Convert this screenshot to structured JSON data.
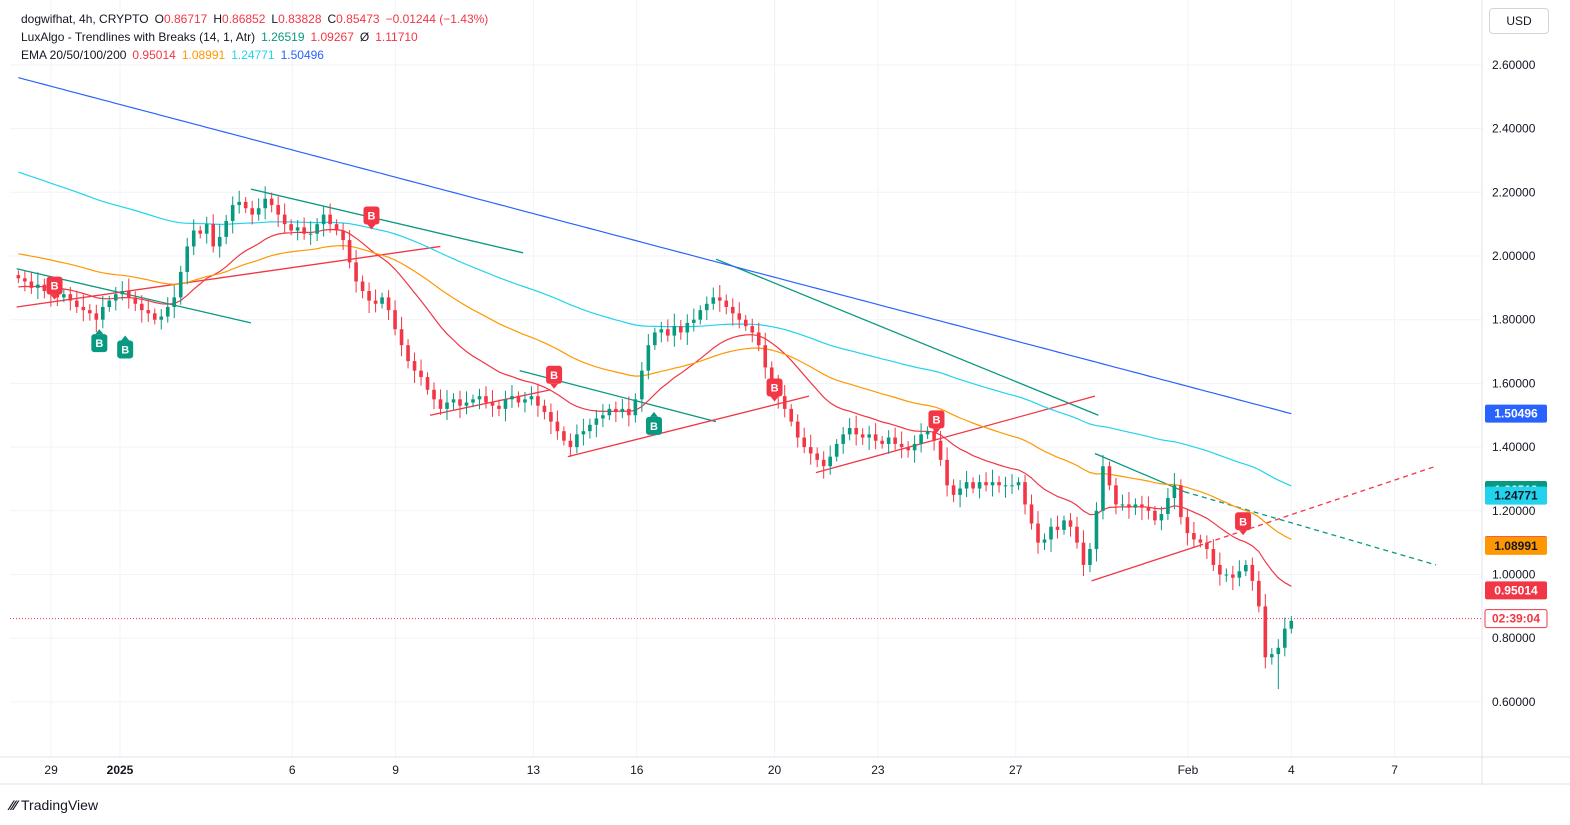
{
  "legend": {
    "symbol": "dogwifhat, 4h, CRYPTO",
    "o_label": "O",
    "o_value": "0.86717",
    "h_label": "H",
    "h_value": "0.86852",
    "l_label": "L",
    "l_value": "0.83828",
    "c_label": "C",
    "c_value": "0.85473",
    "change": "−0.01244 (−1.43%)",
    "indicator1_name": "LuxAlgo - Trendlines with Breaks (14, 1, Atr)",
    "indicator1_v1": "1.26519",
    "indicator1_v2": "1.09267",
    "indicator1_v3": "1.11710",
    "indicator1_sym": "Ø",
    "indicator2_name": "EMA 20/50/100/200",
    "ema20": "0.95014",
    "ema50": "1.08991",
    "ema100": "1.24771",
    "ema200": "1.50496"
  },
  "currency_button": "USD",
  "footer": {
    "logo": "⁄⁄⁄",
    "brand": "TradingView"
  },
  "chart_data": {
    "type": "candlestick",
    "title": "dogwifhat, 4h, CRYPTO",
    "ylim": [
      0.5,
      2.7
    ],
    "y_ticks": [
      "2.60000",
      "2.40000",
      "2.20000",
      "2.00000",
      "1.80000",
      "1.60000",
      "1.40000",
      "1.20000",
      "1.00000",
      "0.80000",
      "0.60000"
    ],
    "y_tick_values": [
      2.6,
      2.4,
      2.2,
      2.0,
      1.8,
      1.6,
      1.4,
      1.2,
      1.0,
      0.8,
      0.6
    ],
    "x_ticks": [
      "29",
      "2025",
      "6",
      "9",
      "13",
      "16",
      "20",
      "23",
      "27",
      "Feb",
      "4",
      "7"
    ],
    "x_tick_days": [
      -2,
      0,
      5,
      8,
      12,
      15,
      19,
      22,
      26,
      31,
      34,
      37
    ],
    "x_start_day": -3,
    "x_end_day": 39,
    "grid": true,
    "price_tags": [
      {
        "label": "1.50496",
        "value": 1.50496,
        "bg": "#2962ff",
        "fg": "#ffffff"
      },
      {
        "label": "1.26519",
        "value": 1.26519,
        "bg": "#089981",
        "fg": "#ffffff"
      },
      {
        "label": "1.24771",
        "value": 1.24771,
        "bg": "#22d3ee",
        "fg": "#131722"
      },
      {
        "label": "1.09267",
        "value": 1.09267,
        "bg": "#f7525f",
        "fg": "#ffffff"
      },
      {
        "label": "1.08991",
        "value": 1.08991,
        "bg": "#ff9800",
        "fg": "#131722"
      },
      {
        "label": "0.95014",
        "value": 0.95014,
        "bg": "#f23645",
        "fg": "#ffffff"
      },
      {
        "label": "02:39:04",
        "value": 0.8615,
        "bg": "#ffffff",
        "fg": "#f23645",
        "border": "#f23645"
      }
    ],
    "current_price": 0.8615,
    "candles_close": [
      1.93,
      1.92,
      1.9,
      1.91,
      1.89,
      1.88,
      1.87,
      1.88,
      1.86,
      1.84,
      1.83,
      1.82,
      1.8,
      1.84,
      1.86,
      1.88,
      1.89,
      1.87,
      1.85,
      1.83,
      1.82,
      1.8,
      1.81,
      1.84,
      1.87,
      1.95,
      2.03,
      2.08,
      2.07,
      2.1,
      2.03,
      2.06,
      2.11,
      2.16,
      2.17,
      2.15,
      2.13,
      2.15,
      2.18,
      2.16,
      2.13,
      2.1,
      2.08,
      2.09,
      2.07,
      2.07,
      2.1,
      2.13,
      2.1,
      2.08,
      2.05,
      1.98,
      1.92,
      1.89,
      1.86,
      1.85,
      1.87,
      1.83,
      1.77,
      1.72,
      1.67,
      1.64,
      1.62,
      1.58,
      1.55,
      1.52,
      1.54,
      1.55,
      1.53,
      1.54,
      1.55,
      1.56,
      1.54,
      1.53,
      1.52,
      1.55,
      1.56,
      1.54,
      1.55,
      1.56,
      1.53,
      1.51,
      1.48,
      1.45,
      1.42,
      1.4,
      1.44,
      1.45,
      1.47,
      1.49,
      1.5,
      1.52,
      1.51,
      1.52,
      1.5,
      1.55,
      1.64,
      1.72,
      1.76,
      1.77,
      1.75,
      1.78,
      1.76,
      1.79,
      1.8,
      1.83,
      1.85,
      1.87,
      1.86,
      1.84,
      1.82,
      1.8,
      1.78,
      1.76,
      1.72,
      1.65,
      1.6,
      1.56,
      1.52,
      1.48,
      1.43,
      1.4,
      1.38,
      1.36,
      1.34,
      1.37,
      1.41,
      1.44,
      1.46,
      1.44,
      1.43,
      1.44,
      1.42,
      1.41,
      1.43,
      1.41,
      1.4,
      1.39,
      1.41,
      1.44,
      1.45,
      1.42,
      1.36,
      1.28,
      1.25,
      1.27,
      1.29,
      1.27,
      1.29,
      1.28,
      1.29,
      1.28,
      1.28,
      1.28,
      1.29,
      1.22,
      1.16,
      1.1,
      1.11,
      1.15,
      1.14,
      1.17,
      1.15,
      1.1,
      1.03,
      1.08,
      1.2,
      1.34,
      1.28,
      1.22,
      1.22,
      1.21,
      1.22,
      1.21,
      1.2,
      1.17,
      1.19,
      1.24,
      1.28,
      1.18,
      1.13,
      1.11,
      1.1,
      1.08,
      1.03,
      1.0,
      1.0,
      0.99,
      1.01,
      1.03,
      0.98,
      0.9,
      0.74,
      0.75,
      0.77,
      0.83,
      0.8547
    ],
    "ema_labels": [
      "EMA 20",
      "EMA 50",
      "EMA 100",
      "EMA 200"
    ],
    "ema_colors": [
      "#f23645",
      "#ff9800",
      "#22d3ee",
      "#2962ff"
    ],
    "trendlines": [
      {
        "color": "#089981",
        "from": [
          -3,
          1.96
        ],
        "to": [
          3.8,
          1.79
        ]
      },
      {
        "color": "#f23645",
        "from": [
          -3,
          1.84
        ],
        "to": [
          9.3,
          2.03
        ]
      },
      {
        "color": "#089981",
        "from": [
          3.8,
          2.21
        ],
        "to": [
          11.7,
          2.01
        ]
      },
      {
        "color": "#089981",
        "from": [
          11.6,
          1.64
        ],
        "to": [
          17.3,
          1.48
        ]
      },
      {
        "color": "#f23645",
        "from": [
          9.0,
          1.5
        ],
        "to": [
          12.5,
          1.58
        ]
      },
      {
        "color": "#f23645",
        "from": [
          13.0,
          1.37
        ],
        "to": [
          20.0,
          1.56
        ]
      },
      {
        "color": "#089981",
        "from": [
          17.3,
          1.99
        ],
        "to": [
          28.4,
          1.5
        ]
      },
      {
        "color": "#f23645",
        "from": [
          20.2,
          1.32
        ],
        "to": [
          28.3,
          1.56
        ]
      },
      {
        "color": "#089981",
        "from": [
          28.3,
          1.38
        ],
        "to": [
          30.9,
          1.26
        ]
      },
      {
        "color": "#f23645",
        "from": [
          28.2,
          0.98
        ],
        "to": [
          31.3,
          1.09
        ]
      }
    ],
    "trend_extensions": [
      {
        "color": "#089981",
        "from": [
          30.9,
          1.26
        ],
        "to": [
          38.2,
          1.03
        ]
      },
      {
        "color": "#f23645",
        "from": [
          31.3,
          1.09
        ],
        "to": [
          38.2,
          1.34
        ]
      }
    ],
    "signals": [
      {
        "text": "B",
        "kind": "bear",
        "day": -1.9,
        "value": 1.86
      },
      {
        "text": "B",
        "kind": "bull",
        "day": -0.6,
        "value": 1.78
      },
      {
        "text": "B",
        "kind": "bull",
        "day": 0.15,
        "value": 1.76
      },
      {
        "text": "B",
        "kind": "bear",
        "day": 7.3,
        "value": 2.08
      },
      {
        "text": "B",
        "kind": "bear",
        "day": 12.6,
        "value": 1.58
      },
      {
        "text": "B",
        "kind": "bull",
        "day": 15.5,
        "value": 1.52
      },
      {
        "text": "B",
        "kind": "bear",
        "day": 19.0,
        "value": 1.54
      },
      {
        "text": "B",
        "kind": "bear",
        "day": 23.7,
        "value": 1.44
      },
      {
        "text": "B",
        "kind": "bear",
        "day": 32.6,
        "value": 1.12
      }
    ]
  }
}
